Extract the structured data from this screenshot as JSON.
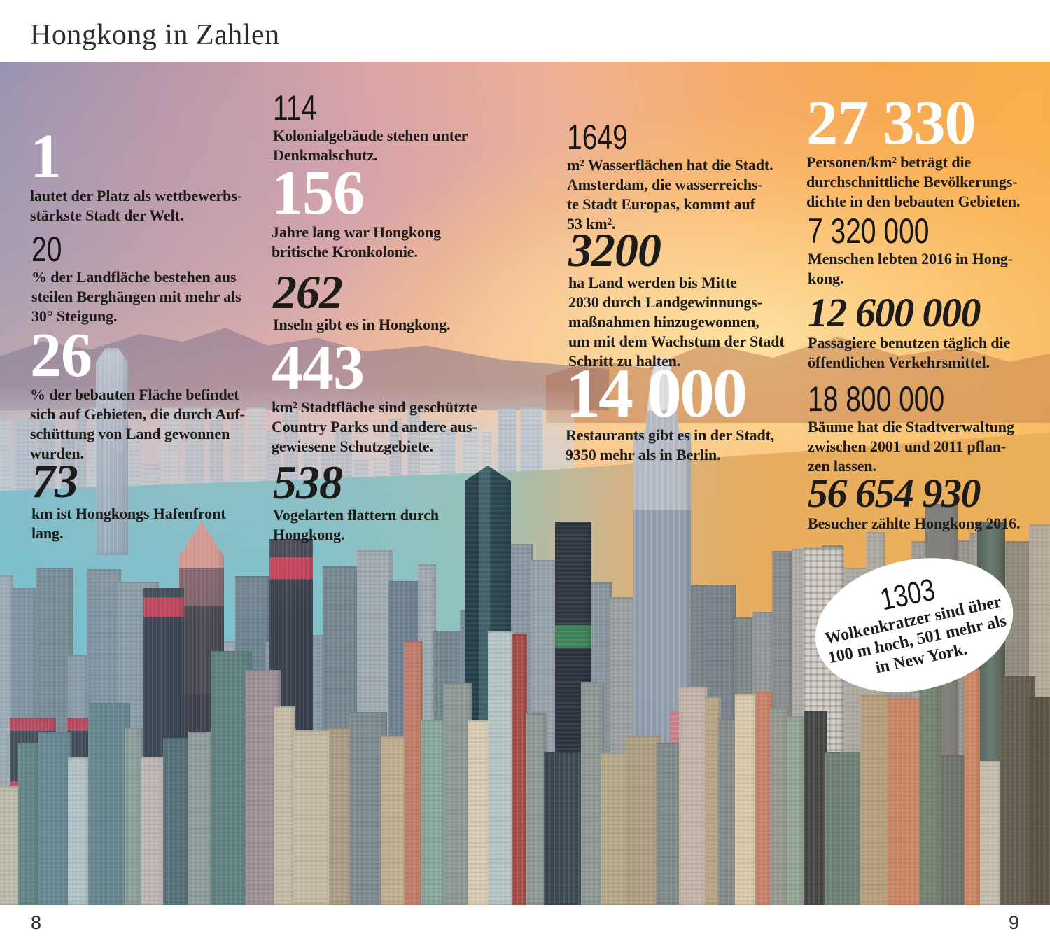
{
  "header": {
    "title": "Hongkong in Zahlen"
  },
  "stats": [
    {
      "value": "1",
      "caption": "lautet der Platz als wettbewerbs-\nstärkste Stadt der Welt."
    },
    {
      "value": "20",
      "caption": "% der Landfläche bestehen aus\nsteilen Berghängen mit mehr als\n30° Steigung."
    },
    {
      "value": "26",
      "caption": "% der bebauten Fläche befindet\nsich auf Gebieten, die durch Auf-\nschüttung von Land gewonnen\nwurden."
    },
    {
      "value": "73",
      "caption": "km ist Hongkongs Hafenfront\nlang."
    },
    {
      "value": "114",
      "caption": "Kolonialgebäude stehen unter\nDenkmalschutz."
    },
    {
      "value": "156",
      "caption": "Jahre lang war Hongkong\nbritische Kronkolonie."
    },
    {
      "value": "262",
      "caption": "Inseln gibt es in Hongkong."
    },
    {
      "value": "443",
      "caption": "km² Stadtfläche sind geschützte\nCountry Parks und andere aus-\ngewiesene Schutzgebiete."
    },
    {
      "value": "538",
      "caption": "Vogelarten flattern durch\nHongkong."
    },
    {
      "value": "1649",
      "caption": "m² Wasserflächen hat die Stadt.\nAmsterdam, die wasserreichs-\nte Stadt Europas, kommt auf\n53 km²."
    },
    {
      "value": "3200",
      "caption": "ha Land werden bis Mitte\n2030 durch Landgewinnungs-\nmaßnahmen hinzugewonnen,\num mit dem Wachstum der Stadt\nSchritt zu halten."
    },
    {
      "value": "14 000",
      "caption": "Restaurants gibt es in der Stadt,\n9350 mehr als in Berlin."
    },
    {
      "value": "27 330",
      "caption": "Personen/km² beträgt die\ndurchschnittliche Bevölkerungs-\ndichte in den bebauten Gebieten."
    },
    {
      "value": "7 320 000",
      "caption": "Menschen lebten 2016 in Hong-\nkong."
    },
    {
      "value": "12 600 000",
      "caption": "Passagiere benutzen täglich die\nöffentlichen Verkehrsmittel."
    },
    {
      "value": "18 800 000",
      "caption": "Bäume hat die Stadtverwaltung\nzwischen 2001 und 2011 pflan-\nzen lassen."
    },
    {
      "value": "56 654 930",
      "caption": "Besucher zählte Hongkong 2016."
    }
  ],
  "bubble": {
    "value": "1303",
    "caption": "Wolkenkratzer sind über\n100 m hoch, 501 mehr als\nin New York."
  },
  "footer": {
    "page_left": "8",
    "page_right": "9"
  },
  "colors": {
    "number_white": "#ffffff",
    "text_dark": "#1d1c1a",
    "sky_left": "#9a8aab",
    "sky_right": "#f6b148",
    "water_teal": "#79bfcd",
    "water_gold": "#e6ad5f"
  }
}
